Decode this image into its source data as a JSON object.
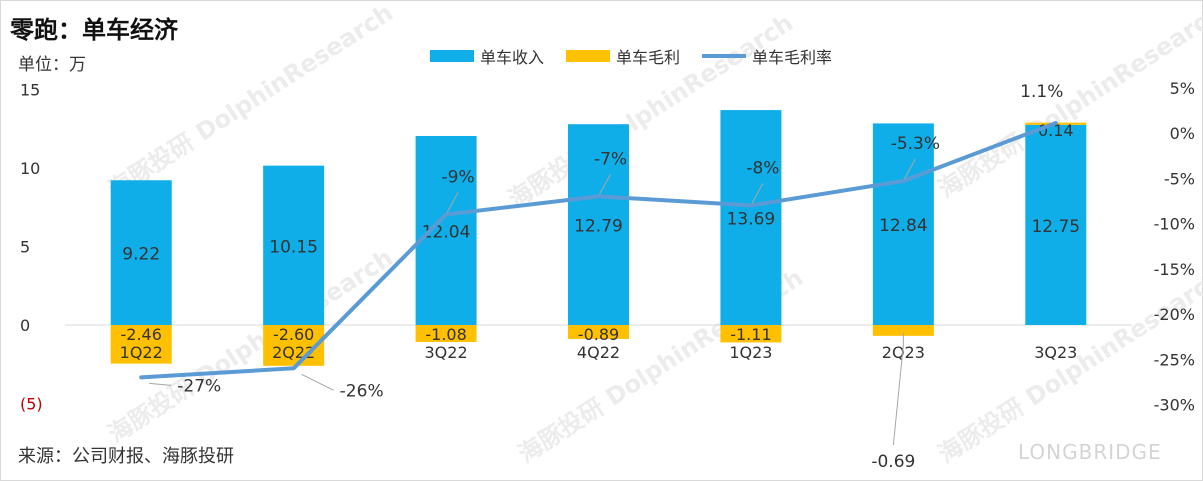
{
  "header": {
    "title": "零跑：单车经济",
    "unit": "单位：万",
    "source": "来源：公司财报、海豚投研",
    "brand": "LONGBRIDGE",
    "watermark": "海豚投研 DolphinResearch"
  },
  "colors": {
    "revenue": "#10AEE9",
    "profit": "#FFC000",
    "rate": "#5B9BD5",
    "left_axis_neg": "#C00000"
  },
  "chart_data": {
    "type": "bar",
    "categories": [
      "1Q22",
      "2Q22",
      "3Q22",
      "4Q22",
      "1Q23",
      "2Q23",
      "3Q23"
    ],
    "series": [
      {
        "name": "单车收入",
        "type": "bar",
        "values": [
          9.22,
          10.15,
          12.04,
          12.79,
          13.69,
          12.84,
          12.75
        ],
        "labels": [
          "9.22",
          "10.15",
          "12.04",
          "12.79",
          "13.69",
          "12.84",
          "12.75"
        ]
      },
      {
        "name": "单车毛利",
        "type": "bar",
        "values": [
          -2.46,
          -2.6,
          -1.08,
          -0.89,
          -1.11,
          -0.69,
          0.14
        ],
        "labels": [
          "-2.46",
          "-2.60",
          "-1.08",
          "-0.89",
          "-1.11",
          "-0.69",
          "0.14"
        ]
      },
      {
        "name": "单车毛利率",
        "type": "line",
        "axis": "right",
        "values": [
          -27,
          -26,
          -9,
          -7,
          -8,
          -5.3,
          1.1
        ],
        "labels": [
          "-27%",
          "-26%",
          "-9%",
          "-7%",
          "-8%",
          "-5.3%",
          "1.1%"
        ]
      }
    ],
    "left_axis": {
      "ylim": [
        -5,
        15
      ],
      "ticks": [
        "(5)",
        "0",
        "5",
        "10",
        "15"
      ]
    },
    "right_axis": {
      "ylim": [
        -30,
        5
      ],
      "ticks": [
        "-30%",
        "-25%",
        "-20%",
        "-15%",
        "-10%",
        "-5%",
        "0%",
        "5%"
      ]
    },
    "grid": false,
    "legend_position": "top"
  }
}
